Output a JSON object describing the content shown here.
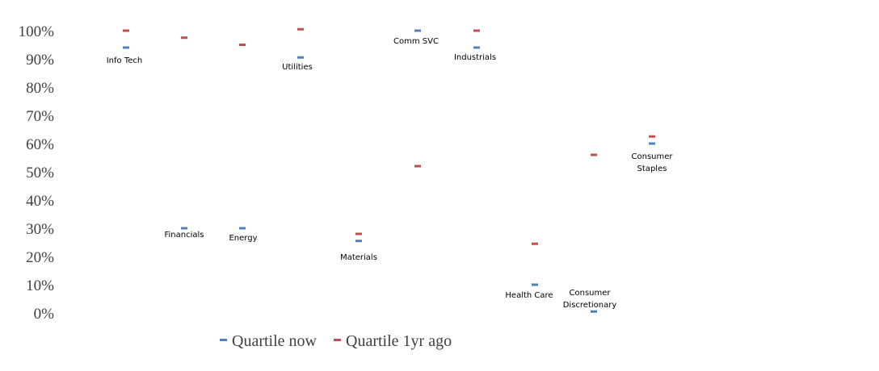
{
  "chart_data": {
    "type": "scatter",
    "title": "",
    "xlabel": "",
    "ylabel": "",
    "ylim": [
      0,
      1
    ],
    "y_ticks": [
      "0%",
      "10%",
      "20%",
      "30%",
      "40%",
      "50%",
      "60%",
      "70%",
      "80%",
      "90%",
      "100%"
    ],
    "grid": false,
    "legend_position": "bottom",
    "categories": [
      "Info Tech",
      "Financials",
      "Energy",
      "Utilities",
      "Materials",
      "Comm SVC",
      "Industrials",
      "Health Care",
      "Consumer Discretionary",
      "Consumer Staples"
    ],
    "series": [
      {
        "name": "Quartile now",
        "color": "#4f81bd",
        "values": [
          0.94,
          0.3,
          0.3,
          0.905,
          0.255,
          1.0,
          0.94,
          0.1,
          0.005,
          0.6
        ]
      },
      {
        "name": "Quartile 1yr ago",
        "color": "#c0504d",
        "values": [
          1.0,
          0.975,
          0.95,
          1.005,
          0.28,
          0.52,
          1.0,
          0.245,
          0.56,
          0.625
        ]
      }
    ]
  }
}
